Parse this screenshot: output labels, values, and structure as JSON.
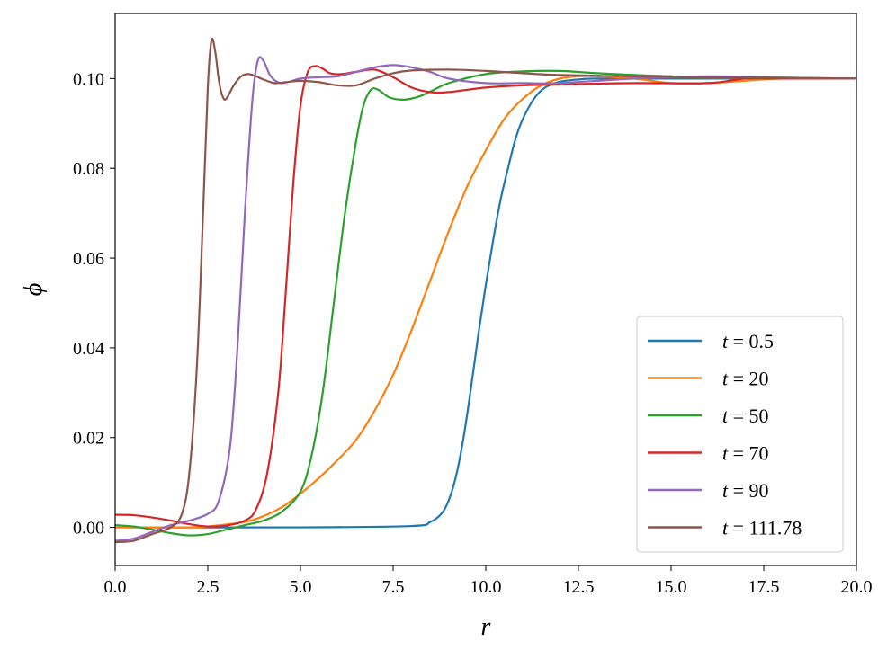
{
  "chart_data": {
    "type": "line",
    "title": "",
    "xlabel": "r",
    "ylabel": "ϕ",
    "xlim": [
      0,
      20
    ],
    "ylim": [
      -0.0085,
      0.1145
    ],
    "xticks": [
      "0.0",
      "2.5",
      "5.0",
      "7.5",
      "10.0",
      "12.5",
      "15.0",
      "17.5",
      "20.0"
    ],
    "yticks": [
      "0.00",
      "0.02",
      "0.04",
      "0.06",
      "0.08",
      "0.10"
    ],
    "grid": false,
    "legend_position": "lower-right",
    "series": [
      {
        "name": "t = 0.5",
        "t_symbol": "t",
        "t_value": "0.5",
        "color": "#1f77b4",
        "x": [
          0,
          5,
          8,
          8.5,
          8.8,
          9.0,
          9.2,
          9.4,
          9.6,
          9.8,
          10.0,
          10.2,
          10.4,
          10.6,
          10.8,
          11.0,
          11.3,
          11.6,
          12.0,
          12.5,
          13,
          15,
          17.5,
          20
        ],
        "y": [
          0,
          0,
          0.0003,
          0.0012,
          0.003,
          0.006,
          0.0115,
          0.02,
          0.031,
          0.043,
          0.054,
          0.064,
          0.073,
          0.08,
          0.0865,
          0.091,
          0.0955,
          0.098,
          0.0993,
          0.0998,
          0.1,
          0.1,
          0.1,
          0.1
        ]
      },
      {
        "name": "t = 20",
        "t_symbol": "t",
        "t_value": "20",
        "color": "#ff7f0e",
        "x": [
          0,
          1,
          2,
          2.5,
          3.5,
          4,
          4.5,
          5,
          5.5,
          6,
          6.5,
          7,
          7.5,
          8,
          8.5,
          9,
          9.5,
          10,
          10.5,
          11,
          11.5,
          12,
          12.5,
          13,
          14,
          15,
          16,
          17,
          18,
          20
        ],
        "y": [
          0,
          0,
          0,
          0.0002,
          0.0012,
          0.0025,
          0.0045,
          0.0075,
          0.011,
          0.015,
          0.0195,
          0.026,
          0.034,
          0.044,
          0.055,
          0.066,
          0.076,
          0.084,
          0.091,
          0.0955,
          0.0985,
          0.1,
          0.1005,
          0.1005,
          0.1,
          0.099,
          0.099,
          0.0995,
          0.1,
          0.1
        ]
      },
      {
        "name": "t = 50",
        "t_symbol": "t",
        "t_value": "50",
        "color": "#2ca02c",
        "x": [
          0,
          0.5,
          1,
          1.5,
          2,
          2.5,
          3,
          3.5,
          4,
          4.5,
          5,
          5.3,
          5.6,
          5.9,
          6.2,
          6.5,
          6.7,
          6.9,
          7.1,
          7.4,
          7.8,
          8.2,
          8.6,
          9,
          10,
          11,
          12,
          13,
          14,
          15,
          16,
          18,
          20
        ],
        "y": [
          0.0005,
          0.0002,
          -0.0005,
          -0.0013,
          -0.0018,
          -0.0015,
          -0.0005,
          0.0005,
          0.0015,
          0.0035,
          0.008,
          0.016,
          0.03,
          0.05,
          0.07,
          0.086,
          0.094,
          0.0975,
          0.0975,
          0.0958,
          0.0953,
          0.096,
          0.0975,
          0.099,
          0.101,
          0.1016,
          0.1017,
          0.1012,
          0.1008,
          0.1005,
          0.1002,
          0.1,
          0.1
        ]
      },
      {
        "name": "t = 70",
        "t_symbol": "t",
        "t_value": "70",
        "color": "#d62728",
        "x": [
          0,
          0.5,
          1,
          1.5,
          2,
          2.5,
          3,
          3.5,
          3.8,
          4.1,
          4.4,
          4.6,
          4.8,
          5.0,
          5.2,
          5.4,
          5.6,
          5.8,
          6.1,
          6.5,
          7,
          7.5,
          8,
          8.5,
          9,
          10,
          11,
          12,
          14,
          16,
          17,
          18,
          20
        ],
        "y": [
          0.0028,
          0.0027,
          0.0022,
          0.0015,
          0.0007,
          0.0002,
          0.0004,
          0.0015,
          0.004,
          0.012,
          0.03,
          0.052,
          0.076,
          0.094,
          0.1015,
          0.1028,
          0.1022,
          0.1012,
          0.101,
          0.1015,
          0.102,
          0.1003,
          0.098,
          0.097,
          0.097,
          0.098,
          0.0985,
          0.0987,
          0.099,
          0.099,
          0.1,
          0.1,
          0.1
        ]
      },
      {
        "name": "t = 90",
        "t_symbol": "t",
        "t_value": "90",
        "color": "#9467bd",
        "x": [
          0,
          0.5,
          1,
          1.5,
          2,
          2.5,
          2.8,
          3.1,
          3.3,
          3.5,
          3.7,
          3.85,
          4.0,
          4.2,
          4.5,
          5,
          5.5,
          6,
          6.5,
          7,
          7.5,
          8,
          8.5,
          9,
          10,
          11,
          12,
          14,
          16,
          18,
          20
        ],
        "y": [
          -0.003,
          -0.0025,
          -0.001,
          0.0005,
          0.0015,
          0.003,
          0.006,
          0.018,
          0.04,
          0.07,
          0.095,
          0.104,
          0.104,
          0.1005,
          0.099,
          0.1,
          0.1003,
          0.1005,
          0.1015,
          0.1025,
          0.103,
          0.1025,
          0.1015,
          0.1,
          0.099,
          0.099,
          0.099,
          0.1,
          0.1005,
          0.1002,
          0.1
        ]
      },
      {
        "name": "t = 111.78",
        "t_symbol": "t",
        "t_value": "111.78",
        "color": "#8c564b",
        "x": [
          0,
          0.5,
          1,
          1.5,
          1.8,
          2.0,
          2.2,
          2.35,
          2.5,
          2.6,
          2.7,
          2.8,
          2.9,
          3.0,
          3.2,
          3.4,
          3.6,
          3.8,
          4.0,
          4.3,
          4.6,
          5.0,
          5.5,
          6,
          6.5,
          7,
          7.5,
          8,
          9,
          10,
          11,
          12,
          14,
          16,
          18,
          20
        ],
        "y": [
          -0.0033,
          -0.003,
          -0.0015,
          0,
          0.003,
          0.012,
          0.035,
          0.065,
          0.098,
          0.1085,
          0.106,
          0.0995,
          0.096,
          0.0955,
          0.0985,
          0.1005,
          0.101,
          0.1005,
          0.0998,
          0.099,
          0.0992,
          0.0995,
          0.0992,
          0.0985,
          0.0985,
          0.1,
          0.1012,
          0.1018,
          0.102,
          0.1017,
          0.1012,
          0.1008,
          0.1005,
          0.1003,
          0.1002,
          0.1
        ]
      }
    ]
  }
}
